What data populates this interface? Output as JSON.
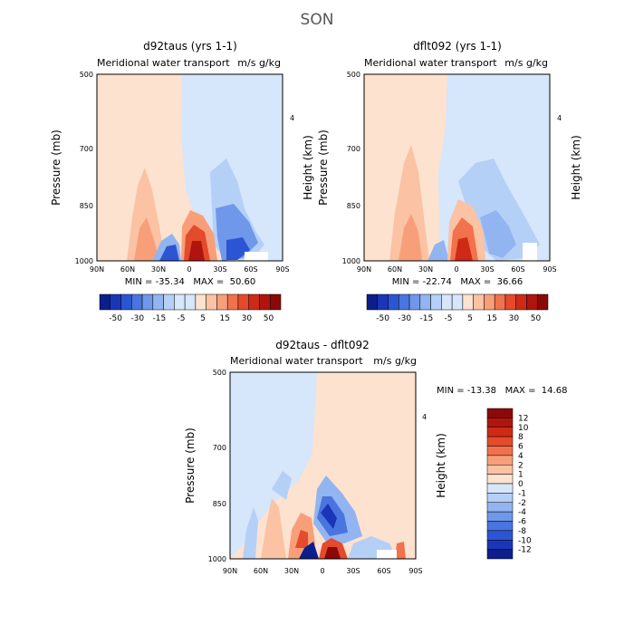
{
  "figure_title": "SON",
  "colors": {
    "positive": [
      "#fde2cf",
      "#fbc2a4",
      "#f89f79",
      "#f1724c",
      "#e44a2c",
      "#cf2a17",
      "#b0150d",
      "#8b0909"
    ],
    "negative": [
      "#d6e6fb",
      "#b5d0f7",
      "#92b5f1",
      "#6f97ea",
      "#4a74e0",
      "#2c55d3",
      "#1a36b8",
      "#0b1f8c"
    ],
    "missing": "#ffffff"
  },
  "chart_data": [
    {
      "type": "heatmap",
      "title": "d92taus (yrs 1-1)",
      "subtitle": "Meridional water transport",
      "units": "m/s g/kg",
      "xlabel": "",
      "ylabel": "Pressure (mb)",
      "y2label": "Height (km)",
      "x_ticks": [
        "90N",
        "60N",
        "30N",
        "0",
        "30S",
        "60S",
        "90S"
      ],
      "y_ticks": [
        "500",
        "700",
        "850",
        "1000"
      ],
      "y_range": [
        1000,
        500
      ],
      "y2_ticks": [
        "4"
      ],
      "stats": "MIN = -35.34   MAX =  50.60",
      "colorbar_labels": [
        "-50",
        "-30",
        "-15",
        "-5",
        "5",
        "15",
        "30",
        "50"
      ]
    },
    {
      "type": "heatmap",
      "title": "dflt092 (yrs 1-1)",
      "subtitle": "Meridional water transport",
      "units": "m/s g/kg",
      "xlabel": "",
      "ylabel": "Pressure (mb)",
      "y2label": "Height (km)",
      "x_ticks": [
        "90N",
        "60N",
        "30N",
        "0",
        "30S",
        "60S",
        "90S"
      ],
      "y_ticks": [
        "500",
        "700",
        "850",
        "1000"
      ],
      "y_range": [
        1000,
        500
      ],
      "y2_ticks": [
        "4"
      ],
      "stats": "MIN = -22.74   MAX =  36.66",
      "colorbar_labels": [
        "-50",
        "-30",
        "-15",
        "-5",
        "5",
        "15",
        "30",
        "50"
      ]
    },
    {
      "type": "heatmap",
      "title": "d92taus - dflt092",
      "subtitle": "Meridional water transport",
      "units": "m/s g/kg",
      "xlabel": "",
      "ylabel": "Pressure (mb)",
      "y2label": "Height (km)",
      "x_ticks": [
        "90N",
        "60N",
        "30N",
        "0",
        "30S",
        "60S",
        "90S"
      ],
      "y_ticks": [
        "500",
        "700",
        "850",
        "1000"
      ],
      "y_range": [
        1000,
        500
      ],
      "y2_ticks": [
        "4"
      ],
      "stats": "MIN = -13.38   MAX =  14.68",
      "colorbar_labels": [
        "12",
        "10",
        "8",
        "6",
        "4",
        "2",
        "1",
        "0",
        "-1",
        "-2",
        "-4",
        "-6",
        "-8",
        "-10",
        "-12"
      ]
    }
  ]
}
